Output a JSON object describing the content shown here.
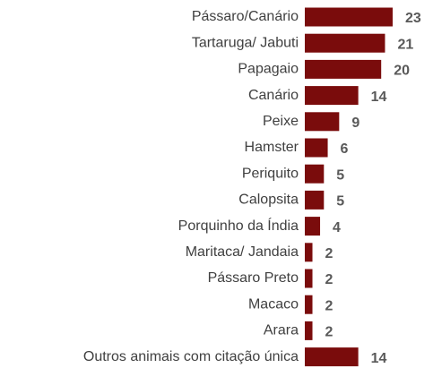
{
  "chart_data": {
    "type": "bar",
    "orientation": "horizontal",
    "categories": [
      "Pássaro/Canário",
      "Tartaruga/ Jabuti",
      "Papagaio",
      "Canário",
      "Peixe",
      "Hamster",
      "Periquito",
      "Calopsita",
      "Porquinho da Índia",
      "Maritaca/ Jandaia",
      "Pássaro Preto",
      "Macaco",
      "Arara",
      "Outros animais com citação única"
    ],
    "values": [
      23,
      21,
      20,
      14,
      9,
      6,
      5,
      5,
      4,
      2,
      2,
      2,
      2,
      14
    ],
    "color": "#7a0c0c"
  }
}
